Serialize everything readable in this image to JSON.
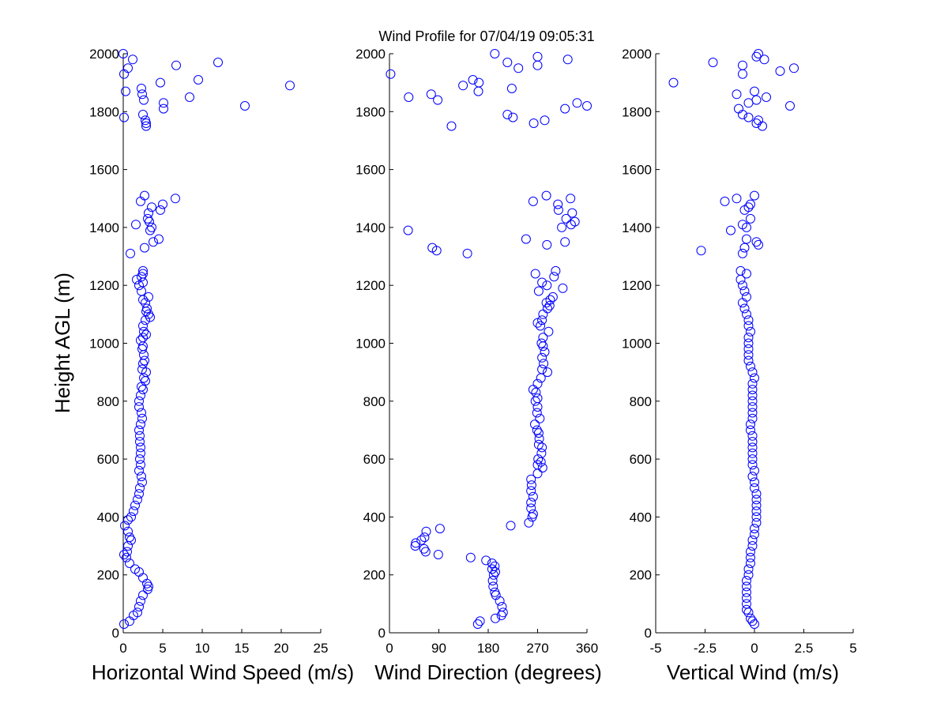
{
  "figure": {
    "title": "Wind Profile for  07/04/19 09:05:31",
    "marker_color": "#0000ff",
    "ylabel": "Height AGL (m)"
  },
  "chart_data": [
    {
      "type": "scatter",
      "name": "speed",
      "xlabel": "Horizontal Wind Speed (m/s)",
      "xlim": [
        0,
        25
      ],
      "xticks": [
        0,
        5,
        10,
        15,
        20,
        25
      ],
      "xtick_labels": [
        "0",
        "5",
        "10",
        "15",
        "20",
        "25"
      ],
      "ylim": [
        0,
        2000
      ],
      "yticks": [
        0,
        200,
        400,
        600,
        800,
        1000,
        1200,
        1400,
        1600,
        1800,
        2000
      ],
      "ytick_labels": [
        "0",
        "200",
        "400",
        "600",
        "800",
        "1000",
        "1200",
        "1400",
        "1600",
        "1800",
        "2000"
      ],
      "points": [
        [
          0,
          2000
        ],
        [
          1.2,
          1980
        ],
        [
          0.6,
          1950
        ],
        [
          0.1,
          1930
        ],
        [
          6.7,
          1960
        ],
        [
          12,
          1970
        ],
        [
          9.5,
          1910
        ],
        [
          4.7,
          1900
        ],
        [
          21.1,
          1890
        ],
        [
          2.3,
          1880
        ],
        [
          0.3,
          1870
        ],
        [
          2.4,
          1860
        ],
        [
          2.6,
          1840
        ],
        [
          8.4,
          1850
        ],
        [
          5.1,
          1830
        ],
        [
          15.4,
          1820
        ],
        [
          5.1,
          1810
        ],
        [
          2.5,
          1790
        ],
        [
          0.1,
          1780
        ],
        [
          2.8,
          1770
        ],
        [
          2.9,
          1760
        ],
        [
          2.9,
          1750
        ],
        [
          2.2,
          1490
        ],
        [
          2.7,
          1510
        ],
        [
          3.6,
          1470
        ],
        [
          5.0,
          1480
        ],
        [
          6.6,
          1500
        ],
        [
          4.7,
          1460
        ],
        [
          3.2,
          1450
        ],
        [
          3.1,
          1430
        ],
        [
          3.3,
          1420
        ],
        [
          1.6,
          1410
        ],
        [
          3.6,
          1400
        ],
        [
          3.4,
          1390
        ],
        [
          4.5,
          1360
        ],
        [
          3.8,
          1350
        ],
        [
          2.7,
          1330
        ],
        [
          0.9,
          1310
        ],
        [
          2.5,
          1250
        ],
        [
          2.5,
          1240
        ],
        [
          2.3,
          1230
        ],
        [
          1.7,
          1220
        ],
        [
          2.5,
          1210
        ],
        [
          2.0,
          1200
        ],
        [
          2.3,
          1180
        ],
        [
          3.2,
          1160
        ],
        [
          2.5,
          1150
        ],
        [
          2.8,
          1140
        ],
        [
          3.0,
          1120
        ],
        [
          2.9,
          1110
        ],
        [
          3.2,
          1100
        ],
        [
          3.4,
          1090
        ],
        [
          2.8,
          1080
        ],
        [
          2.5,
          1060
        ],
        [
          2.6,
          1040
        ],
        [
          2.9,
          1030
        ],
        [
          2.5,
          1020
        ],
        [
          2.2,
          1010
        ],
        [
          2.5,
          990
        ],
        [
          2.4,
          980
        ],
        [
          2.6,
          960
        ],
        [
          2.7,
          940
        ],
        [
          2.5,
          930
        ],
        [
          2.4,
          910
        ],
        [
          2.9,
          900
        ],
        [
          2.6,
          880
        ],
        [
          2.8,
          870
        ],
        [
          2.3,
          850
        ],
        [
          2.5,
          840
        ],
        [
          2.2,
          820
        ],
        [
          2.0,
          800
        ],
        [
          2.0,
          780
        ],
        [
          2.3,
          760
        ],
        [
          2.4,
          740
        ],
        [
          2.2,
          720
        ],
        [
          2.0,
          700
        ],
        [
          2.1,
          680
        ],
        [
          2.1,
          660
        ],
        [
          2.2,
          640
        ],
        [
          2.2,
          620
        ],
        [
          2.1,
          600
        ],
        [
          2.2,
          580
        ],
        [
          2.0,
          560
        ],
        [
          2.3,
          540
        ],
        [
          2.4,
          520
        ],
        [
          2.1,
          500
        ],
        [
          2.0,
          480
        ],
        [
          1.8,
          460
        ],
        [
          1.5,
          440
        ],
        [
          1.3,
          420
        ],
        [
          1.0,
          400
        ],
        [
          0.6,
          390
        ],
        [
          0.2,
          370
        ],
        [
          0.6,
          350
        ],
        [
          0.8,
          330
        ],
        [
          1.0,
          320
        ],
        [
          0.6,
          300
        ],
        [
          0.5,
          280
        ],
        [
          0.1,
          270
        ],
        [
          0.4,
          260
        ],
        [
          0.8,
          240
        ],
        [
          1.5,
          220
        ],
        [
          2.0,
          210
        ],
        [
          2.5,
          190
        ],
        [
          3.0,
          170
        ],
        [
          3.2,
          160
        ],
        [
          3.1,
          150
        ],
        [
          2.5,
          130
        ],
        [
          2.2,
          110
        ],
        [
          2.0,
          90
        ],
        [
          1.8,
          70
        ],
        [
          1.3,
          60
        ],
        [
          0.8,
          40
        ],
        [
          0.1,
          30
        ]
      ]
    },
    {
      "type": "scatter",
      "name": "direction",
      "xlabel": "Wind Direction (degrees)",
      "xlim": [
        0,
        360
      ],
      "xticks": [
        0,
        90,
        180,
        270,
        360
      ],
      "xtick_labels": [
        "0",
        "90",
        "180",
        "270",
        "360"
      ],
      "ylim": [
        0,
        2000
      ],
      "yticks": [
        0,
        200,
        400,
        600,
        800,
        1000,
        1200,
        1400,
        1600,
        1800,
        2000
      ],
      "ytick_labels": [
        "0",
        "200",
        "400",
        "600",
        "800",
        "1000",
        "1200",
        "1400",
        "1600",
        "1800",
        "2000"
      ],
      "points": [
        [
          192,
          2000
        ],
        [
          270,
          1990
        ],
        [
          215,
          1970
        ],
        [
          325,
          1980
        ],
        [
          235,
          1950
        ],
        [
          270,
          1960
        ],
        [
          2,
          1930
        ],
        [
          163,
          1900
        ],
        [
          152,
          1910
        ],
        [
          134,
          1890
        ],
        [
          223,
          1880
        ],
        [
          162,
          1870
        ],
        [
          35,
          1850
        ],
        [
          76,
          1860
        ],
        [
          88,
          1840
        ],
        [
          342,
          1830
        ],
        [
          320,
          1810
        ],
        [
          360,
          1820
        ],
        [
          215,
          1790
        ],
        [
          225,
          1780
        ],
        [
          283,
          1770
        ],
        [
          263,
          1760
        ],
        [
          113,
          1750
        ],
        [
          262,
          1490
        ],
        [
          286,
          1510
        ],
        [
          307,
          1480
        ],
        [
          330,
          1500
        ],
        [
          308,
          1460
        ],
        [
          333,
          1450
        ],
        [
          322,
          1430
        ],
        [
          338,
          1420
        ],
        [
          331,
          1410
        ],
        [
          314,
          1400
        ],
        [
          34,
          1390
        ],
        [
          249,
          1360
        ],
        [
          320,
          1350
        ],
        [
          287,
          1340
        ],
        [
          78,
          1330
        ],
        [
          86,
          1320
        ],
        [
          142,
          1310
        ],
        [
          303,
          1250
        ],
        [
          266,
          1240
        ],
        [
          300,
          1230
        ],
        [
          278,
          1210
        ],
        [
          287,
          1200
        ],
        [
          316,
          1190
        ],
        [
          272,
          1180
        ],
        [
          298,
          1160
        ],
        [
          293,
          1150
        ],
        [
          286,
          1140
        ],
        [
          292,
          1130
        ],
        [
          288,
          1120
        ],
        [
          280,
          1100
        ],
        [
          278,
          1080
        ],
        [
          270,
          1070
        ],
        [
          275,
          1060
        ],
        [
          290,
          1040
        ],
        [
          280,
          1020
        ],
        [
          277,
          1000
        ],
        [
          280,
          990
        ],
        [
          283,
          970
        ],
        [
          278,
          950
        ],
        [
          281,
          930
        ],
        [
          278,
          910
        ],
        [
          288,
          900
        ],
        [
          276,
          880
        ],
        [
          270,
          860
        ],
        [
          262,
          840
        ],
        [
          267,
          830
        ],
        [
          270,
          810
        ],
        [
          266,
          800
        ],
        [
          270,
          780
        ],
        [
          269,
          760
        ],
        [
          274,
          740
        ],
        [
          265,
          720
        ],
        [
          269,
          700
        ],
        [
          272,
          690
        ],
        [
          273,
          670
        ],
        [
          272,
          650
        ],
        [
          278,
          640
        ],
        [
          277,
          620
        ],
        [
          271,
          600
        ],
        [
          276,
          590
        ],
        [
          270,
          580
        ],
        [
          279,
          570
        ],
        [
          270,
          550
        ],
        [
          258,
          530
        ],
        [
          259,
          510
        ],
        [
          258,
          490
        ],
        [
          262,
          470
        ],
        [
          258,
          450
        ],
        [
          258,
          430
        ],
        [
          262,
          410
        ],
        [
          260,
          400
        ],
        [
          254,
          380
        ],
        [
          221,
          370
        ],
        [
          92,
          360
        ],
        [
          67,
          350
        ],
        [
          64,
          330
        ],
        [
          58,
          320
        ],
        [
          48,
          310
        ],
        [
          47,
          300
        ],
        [
          63,
          290
        ],
        [
          66,
          280
        ],
        [
          89,
          270
        ],
        [
          148,
          260
        ],
        [
          176,
          250
        ],
        [
          187,
          240
        ],
        [
          192,
          230
        ],
        [
          187,
          220
        ],
        [
          193,
          210
        ],
        [
          190,
          200
        ],
        [
          188,
          180
        ],
        [
          189,
          160
        ],
        [
          192,
          140
        ],
        [
          194,
          130
        ],
        [
          201,
          110
        ],
        [
          205,
          90
        ],
        [
          207,
          70
        ],
        [
          204,
          60
        ],
        [
          193,
          50
        ],
        [
          165,
          40
        ],
        [
          161,
          30
        ]
      ]
    },
    {
      "type": "scatter",
      "name": "vertical",
      "xlabel": "Vertical Wind (m/s)",
      "xlim": [
        -5,
        5
      ],
      "xticks": [
        -5,
        -2.5,
        0,
        2.5,
        5
      ],
      "xtick_labels": [
        "-5",
        "-2.5",
        "0",
        "2.5",
        "5"
      ],
      "ylim": [
        0,
        2000
      ],
      "yticks": [
        0,
        200,
        400,
        600,
        800,
        1000,
        1200,
        1400,
        1600,
        1800,
        2000
      ],
      "ytick_labels": [
        "0",
        "200",
        "400",
        "600",
        "800",
        "1000",
        "1200",
        "1400",
        "1600",
        "1800",
        "2000"
      ],
      "points": [
        [
          0.2,
          2000
        ],
        [
          0.1,
          1990
        ],
        [
          0.5,
          1980
        ],
        [
          -2.1,
          1970
        ],
        [
          -0.6,
          1960
        ],
        [
          1.3,
          1940
        ],
        [
          2,
          1950
        ],
        [
          -0.6,
          1930
        ],
        [
          -4.1,
          1900
        ],
        [
          0,
          1870
        ],
        [
          -0.9,
          1860
        ],
        [
          0.6,
          1850
        ],
        [
          0.1,
          1840
        ],
        [
          -0.3,
          1830
        ],
        [
          1.8,
          1820
        ],
        [
          -0.8,
          1810
        ],
        [
          -0.6,
          1790
        ],
        [
          -0.3,
          1780
        ],
        [
          0.2,
          1770
        ],
        [
          0.1,
          1760
        ],
        [
          0.4,
          1750
        ],
        [
          -1.5,
          1490
        ],
        [
          -0.9,
          1500
        ],
        [
          0,
          1510
        ],
        [
          -0.2,
          1480
        ],
        [
          -0.3,
          1470
        ],
        [
          -0.5,
          1460
        ],
        [
          -0.2,
          1430
        ],
        [
          -0.6,
          1410
        ],
        [
          -0.4,
          1400
        ],
        [
          -1.2,
          1390
        ],
        [
          -0.4,
          1360
        ],
        [
          0.1,
          1350
        ],
        [
          0.2,
          1340
        ],
        [
          -0.5,
          1330
        ],
        [
          -2.7,
          1320
        ],
        [
          -0.6,
          1310
        ],
        [
          -0.7,
          1250
        ],
        [
          -0.4,
          1240
        ],
        [
          -0.7,
          1220
        ],
        [
          -0.6,
          1200
        ],
        [
          -0.5,
          1180
        ],
        [
          -0.4,
          1160
        ],
        [
          -0.6,
          1140
        ],
        [
          -0.5,
          1120
        ],
        [
          -0.4,
          1100
        ],
        [
          -0.3,
          1080
        ],
        [
          -0.3,
          1060
        ],
        [
          -0.2,
          1040
        ],
        [
          -0.3,
          1020
        ],
        [
          -0.3,
          1000
        ],
        [
          -0.3,
          980
        ],
        [
          -0.3,
          960
        ],
        [
          -0.3,
          940
        ],
        [
          -0.2,
          920
        ],
        [
          -0.1,
          900
        ],
        [
          0,
          880
        ],
        [
          -0.1,
          860
        ],
        [
          -0.1,
          840
        ],
        [
          -0.1,
          820
        ],
        [
          -0.1,
          800
        ],
        [
          -0.1,
          780
        ],
        [
          -0.1,
          760
        ],
        [
          -0.1,
          740
        ],
        [
          -0.2,
          720
        ],
        [
          -0.2,
          700
        ],
        [
          -0.1,
          680
        ],
        [
          -0.1,
          660
        ],
        [
          -0.1,
          640
        ],
        [
          -0.1,
          620
        ],
        [
          -0.1,
          600
        ],
        [
          -0.1,
          580
        ],
        [
          0,
          560
        ],
        [
          -0.1,
          540
        ],
        [
          0,
          520
        ],
        [
          0,
          500
        ],
        [
          0.1,
          480
        ],
        [
          0.1,
          460
        ],
        [
          0.1,
          440
        ],
        [
          0.1,
          420
        ],
        [
          0.1,
          400
        ],
        [
          0.1,
          380
        ],
        [
          0,
          360
        ],
        [
          0,
          340
        ],
        [
          -0.1,
          320
        ],
        [
          -0.1,
          300
        ],
        [
          -0.2,
          280
        ],
        [
          -0.2,
          260
        ],
        [
          -0.2,
          240
        ],
        [
          -0.3,
          220
        ],
        [
          -0.3,
          200
        ],
        [
          -0.4,
          180
        ],
        [
          -0.4,
          160
        ],
        [
          -0.4,
          140
        ],
        [
          -0.4,
          120
        ],
        [
          -0.4,
          100
        ],
        [
          -0.4,
          80
        ],
        [
          -0.3,
          70
        ],
        [
          -0.2,
          50
        ],
        [
          -0.1,
          40
        ],
        [
          0,
          30
        ]
      ]
    }
  ]
}
